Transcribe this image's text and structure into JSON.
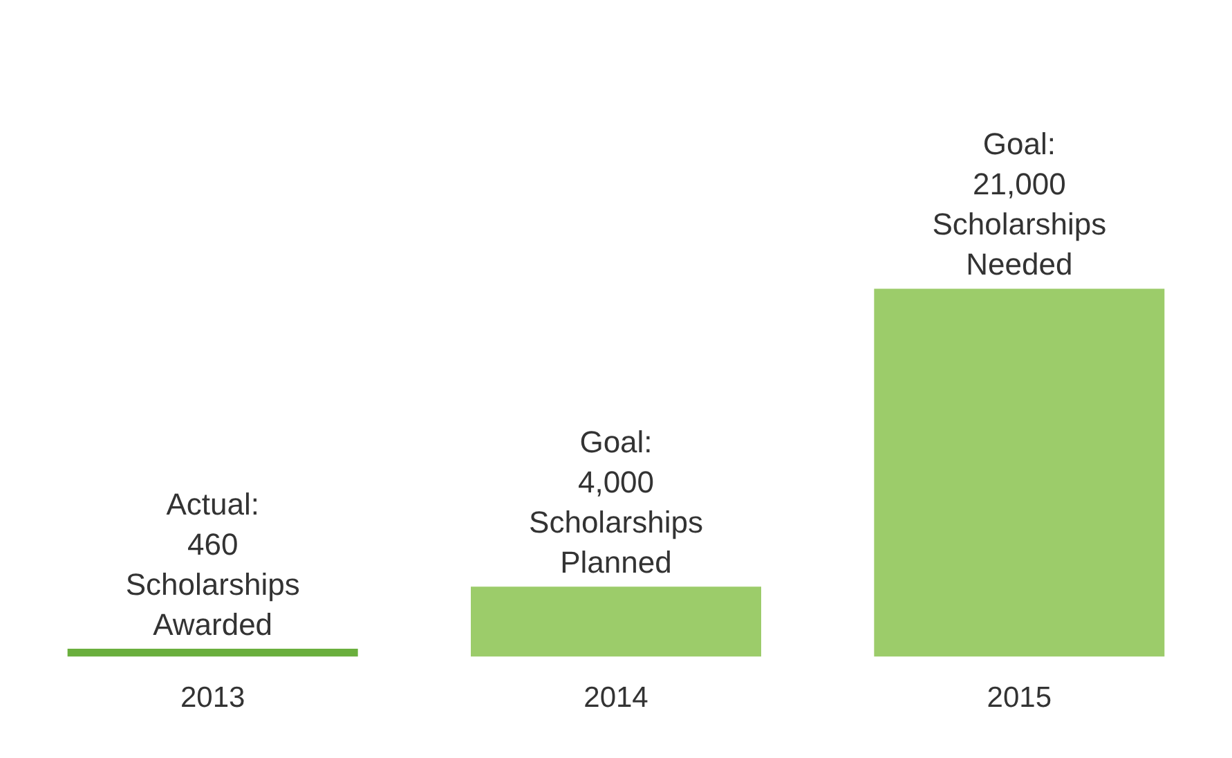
{
  "chart_data": {
    "type": "bar",
    "categories": [
      "2013",
      "2014",
      "2015"
    ],
    "values": [
      460,
      4000,
      21000
    ],
    "colors": [
      "#6aaf3d",
      "#9ccc6a",
      "#9ccc6a"
    ],
    "value_labels": [
      "Actual:\n460\nScholarships\nAwarded",
      "Goal:\n4,000\nScholarships\nPlanned",
      "Goal:\n21,000\nScholarships\nNeeded"
    ],
    "grid": false,
    "legend": false
  }
}
